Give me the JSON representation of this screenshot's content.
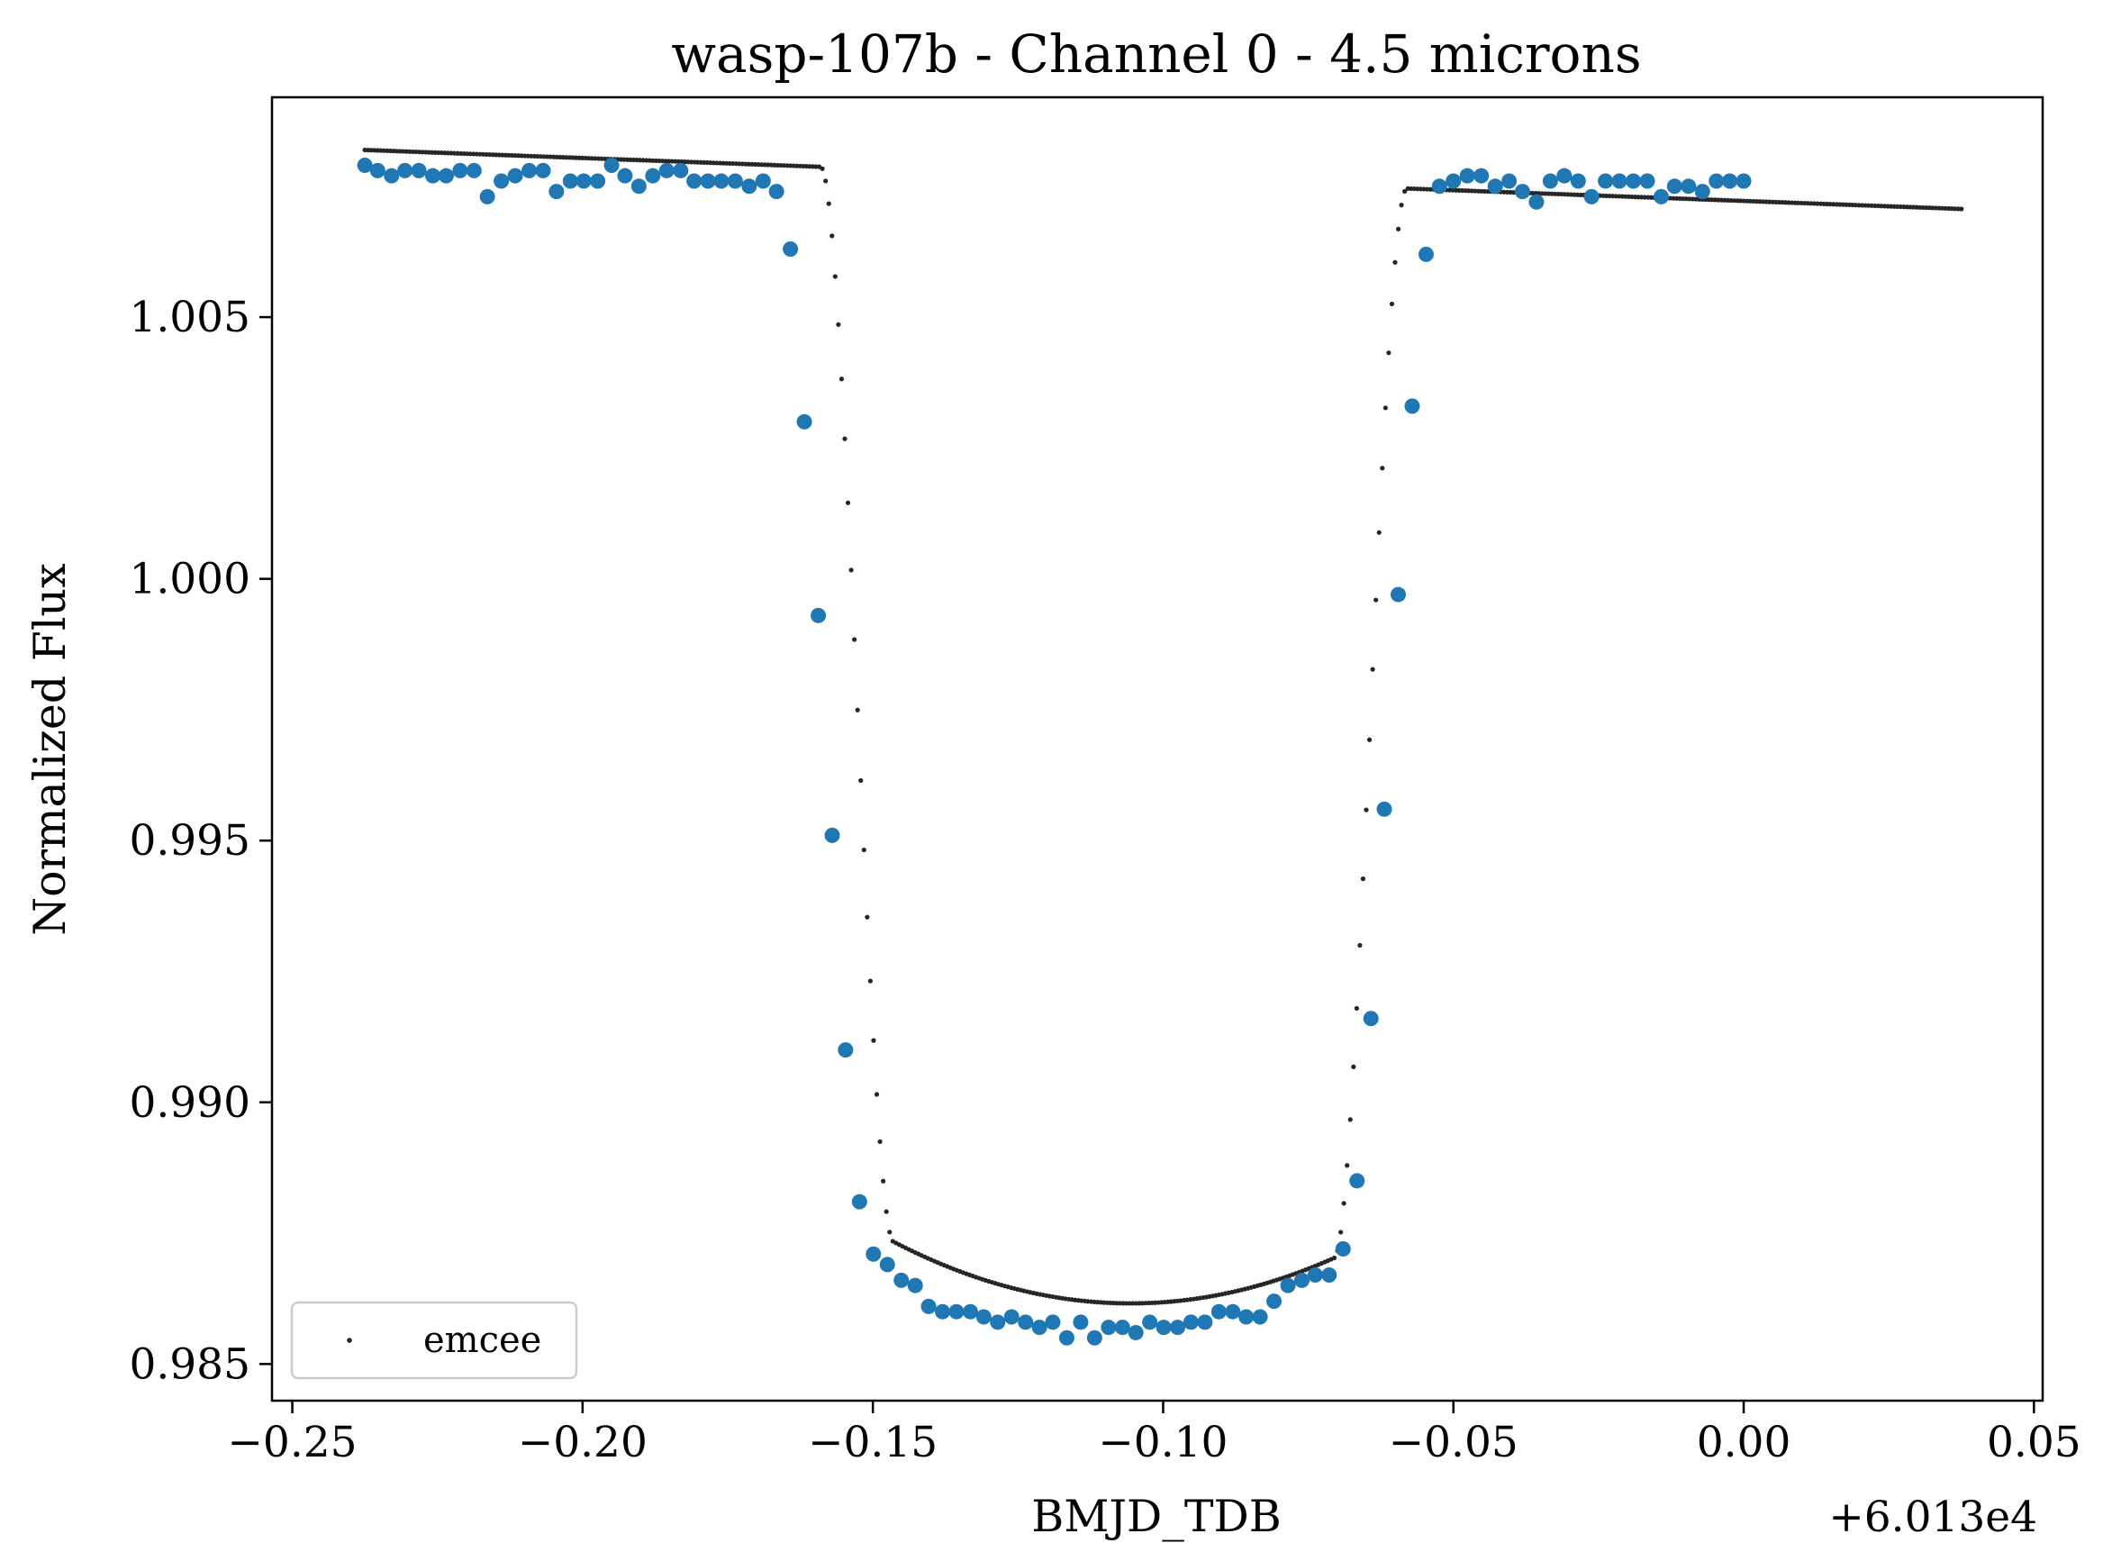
{
  "chart_data": {
    "type": "scatter",
    "title": "wasp-107b - Channel 0 - 4.5 microns",
    "xlabel": "BMJD_TDB",
    "ylabel": "Normalized Flux",
    "x_offset_label": "+6.013e4",
    "x_offset": 60130,
    "xlim": [
      -0.2535,
      0.0515
    ],
    "ylim": [
      0.9843,
      1.0092
    ],
    "x_ticks": [
      -0.25,
      -0.2,
      -0.15,
      -0.1,
      -0.05,
      0.0,
      0.05
    ],
    "x_tick_labels": [
      "−0.25",
      "−0.20",
      "−0.15",
      "−0.10",
      "−0.05",
      "0.00",
      "0.05"
    ],
    "y_ticks": [
      0.985,
      0.99,
      0.995,
      1.0,
      1.005
    ],
    "y_tick_labels": [
      "0.985",
      "0.990",
      "0.995",
      "1.000",
      "1.005"
    ],
    "grid": false,
    "legend": {
      "position": "lower-left",
      "entries": [
        "emcee"
      ]
    },
    "colors": {
      "data": "#1f77b4",
      "model": "#262626",
      "axes": "#000000"
    },
    "data_points": {
      "x": [
        -0.2375,
        -0.2353,
        -0.2329,
        -0.2306,
        -0.2282,
        -0.2258,
        -0.2235,
        -0.2211,
        -0.2187,
        -0.2164,
        -0.214,
        -0.2116,
        -0.2092,
        -0.2068,
        -0.2045,
        -0.2021,
        -0.1998,
        -0.1974,
        -0.195,
        -0.1927,
        -0.1903,
        -0.1879,
        -0.1855,
        -0.1831,
        -0.1808,
        -0.1784,
        -0.1761,
        -0.1737,
        -0.1713,
        -0.1689,
        -0.1666,
        -0.1642,
        -0.1618,
        -0.1594,
        -0.157,
        -0.1547,
        -0.1523,
        -0.1499,
        -0.1475,
        -0.1451,
        -0.1427,
        -0.1404,
        -0.138,
        -0.1356,
        -0.1332,
        -0.1309,
        -0.1285,
        -0.1261,
        -0.1237,
        -0.1213,
        -0.119,
        -0.1166,
        -0.1142,
        -0.1118,
        -0.1094,
        -0.107,
        -0.1047,
        -0.1023,
        -0.0999,
        -0.0975,
        -0.0952,
        -0.0928,
        -0.0904,
        -0.088,
        -0.0857,
        -0.0833,
        -0.0809,
        -0.0785,
        -0.0761,
        -0.0738,
        -0.0714,
        -0.069,
        -0.0666,
        -0.0642,
        -0.0619,
        -0.0595,
        -0.0571,
        -0.0547,
        -0.0524,
        -0.05,
        -0.0476,
        -0.0452,
        -0.0428,
        -0.0404,
        -0.0381,
        -0.0357,
        -0.0333,
        -0.0309,
        -0.0285,
        -0.0262,
        -0.0238,
        -0.0214,
        -0.019,
        -0.0166,
        -0.0142,
        -0.0119,
        -0.0095,
        -0.0071,
        -0.0047,
        -0.0024,
        0.0
      ],
      "y": [
        1.0079,
        1.0078,
        1.0077,
        1.0078,
        1.0078,
        1.0077,
        1.0077,
        1.0078,
        1.0078,
        1.0073,
        1.0076,
        1.0077,
        1.0078,
        1.0078,
        1.0074,
        1.0076,
        1.0076,
        1.0076,
        1.0079,
        1.0077,
        1.0075,
        1.0077,
        1.0078,
        1.0078,
        1.0076,
        1.0076,
        1.0076,
        1.0076,
        1.0075,
        1.0076,
        1.0074,
        1.0063,
        1.003,
        0.9993,
        0.9951,
        0.991,
        0.9881,
        0.9871,
        0.9869,
        0.9866,
        0.9865,
        0.9861,
        0.986,
        0.986,
        0.986,
        0.9859,
        0.9858,
        0.9859,
        0.9858,
        0.9857,
        0.9858,
        0.9855,
        0.9858,
        0.9855,
        0.9857,
        0.9857,
        0.9856,
        0.9858,
        0.9857,
        0.9857,
        0.9858,
        0.9858,
        0.986,
        0.986,
        0.9859,
        0.9859,
        0.9862,
        0.9865,
        0.9866,
        0.9867,
        0.9867,
        0.9872,
        0.9885,
        0.9916,
        0.9956,
        0.9997,
        1.0033,
        1.0062,
        1.0075,
        1.0076,
        1.0077,
        1.0077,
        1.0075,
        1.0076,
        1.0074,
        1.0072,
        1.0076,
        1.0077,
        1.0076,
        1.0073,
        1.0076,
        1.0076,
        1.0076,
        1.0076,
        1.0073,
        1.0075,
        1.0075,
        1.0074,
        1.0076,
        1.0076,
        1.0076
      ]
    },
    "model": {
      "name": "emcee",
      "t0": -0.1085,
      "half_duration": 0.0505,
      "ingress": 0.0125,
      "depth": 0.0215,
      "curvature": 0.0018,
      "baseline_a": 1.00763,
      "baseline_b": -0.0041,
      "baseline_t_ref": -0.1,
      "x_start": -0.2375,
      "x_end": 0.0375,
      "n_points": 500
    }
  }
}
